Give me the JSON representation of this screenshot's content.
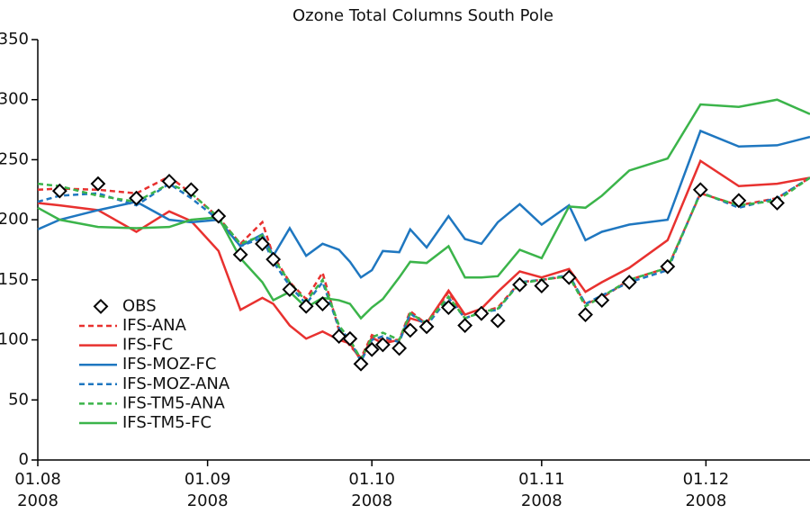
{
  "chart_data": {
    "type": "line",
    "title": "Ozone Total Columns South Pole",
    "x": [
      0,
      4,
      11,
      18,
      24,
      28,
      33,
      37,
      41,
      43,
      46,
      49,
      52,
      55,
      57,
      59,
      61,
      63,
      66,
      68,
      71,
      75,
      78,
      81,
      84,
      88,
      92,
      97,
      100,
      103,
      108,
      115,
      121,
      128,
      135,
      141
    ],
    "xlim": [
      0,
      141
    ],
    "xticks": [
      {
        "value": 0,
        "label": "01.08\n2008"
      },
      {
        "value": 31,
        "label": "01.09\n2008"
      },
      {
        "value": 61,
        "label": "01.10\n2008"
      },
      {
        "value": 92,
        "label": "01.11\n2008"
      },
      {
        "value": 122,
        "label": "01.12\n2008"
      }
    ],
    "ylim": [
      0,
      350
    ],
    "yticks": [
      0,
      50,
      100,
      150,
      200,
      250,
      300,
      350
    ],
    "grid": false,
    "legend": "lower left",
    "series": [
      {
        "name": "OBS",
        "color": "#000000",
        "marker": "diamond",
        "values": [
          null,
          224,
          230,
          218,
          232,
          225,
          203,
          171,
          180,
          167,
          142,
          128,
          130,
          103,
          101,
          80,
          92,
          96,
          93,
          108,
          111,
          127,
          112,
          122,
          116,
          146,
          145,
          152,
          121,
          133,
          148,
          161,
          225,
          216,
          214,
          null
        ]
      },
      {
        "name": "IFS-ANA",
        "color": "#e8312f",
        "dashed": true,
        "values": [
          225,
          226,
          225,
          222,
          236,
          222,
          202,
          180,
          198,
          170,
          148,
          134,
          156,
          108,
          95,
          85,
          104,
          100,
          100,
          124,
          113,
          140,
          118,
          123,
          127,
          148,
          150,
          153,
          130,
          135,
          150,
          160,
          222,
          212,
          218,
          235
        ]
      },
      {
        "name": "IFS-FC",
        "color": "#e8312f",
        "values": [
          214,
          212,
          208,
          190,
          207,
          199,
          174,
          125,
          135,
          130,
          112,
          101,
          107,
          100,
          97,
          83,
          102,
          97,
          100,
          118,
          114,
          141,
          121,
          126,
          140,
          157,
          152,
          159,
          140,
          148,
          160,
          183,
          249,
          228,
          230,
          235
        ]
      },
      {
        "name": "IFS-MOZ-FC",
        "color": "#1f77c0",
        "values": [
          192,
          200,
          208,
          215,
          200,
          198,
          200,
          178,
          188,
          170,
          193,
          170,
          180,
          175,
          165,
          152,
          158,
          174,
          173,
          192,
          177,
          203,
          184,
          180,
          198,
          213,
          196,
          212,
          183,
          190,
          196,
          200,
          274,
          261,
          262,
          269
        ]
      },
      {
        "name": "IFS-MOZ-ANA",
        "color": "#1f77c0",
        "dashed": true,
        "values": [
          215,
          220,
          222,
          212,
          230,
          218,
          200,
          178,
          185,
          165,
          145,
          130,
          148,
          110,
          100,
          82,
          100,
          103,
          98,
          122,
          112,
          135,
          118,
          123,
          125,
          148,
          150,
          154,
          130,
          137,
          148,
          158,
          223,
          210,
          218,
          235
        ]
      },
      {
        "name": "IFS-TM5-ANA",
        "color": "#3bb44a",
        "dashed": true,
        "values": [
          230,
          228,
          220,
          215,
          230,
          222,
          202,
          180,
          187,
          168,
          148,
          132,
          150,
          112,
          100,
          84,
          102,
          106,
          100,
          122,
          114,
          136,
          118,
          123,
          126,
          147,
          150,
          153,
          128,
          136,
          150,
          160,
          222,
          212,
          216,
          235
        ]
      },
      {
        "name": "IFS-TM5-FC",
        "color": "#3bb44a",
        "values": [
          210,
          200,
          194,
          193,
          194,
          200,
          202,
          168,
          148,
          133,
          140,
          127,
          135,
          133,
          130,
          118,
          127,
          134,
          152,
          165,
          164,
          178,
          152,
          152,
          153,
          175,
          168,
          211,
          210,
          220,
          241,
          251,
          296,
          294,
          300,
          288
        ]
      }
    ]
  }
}
